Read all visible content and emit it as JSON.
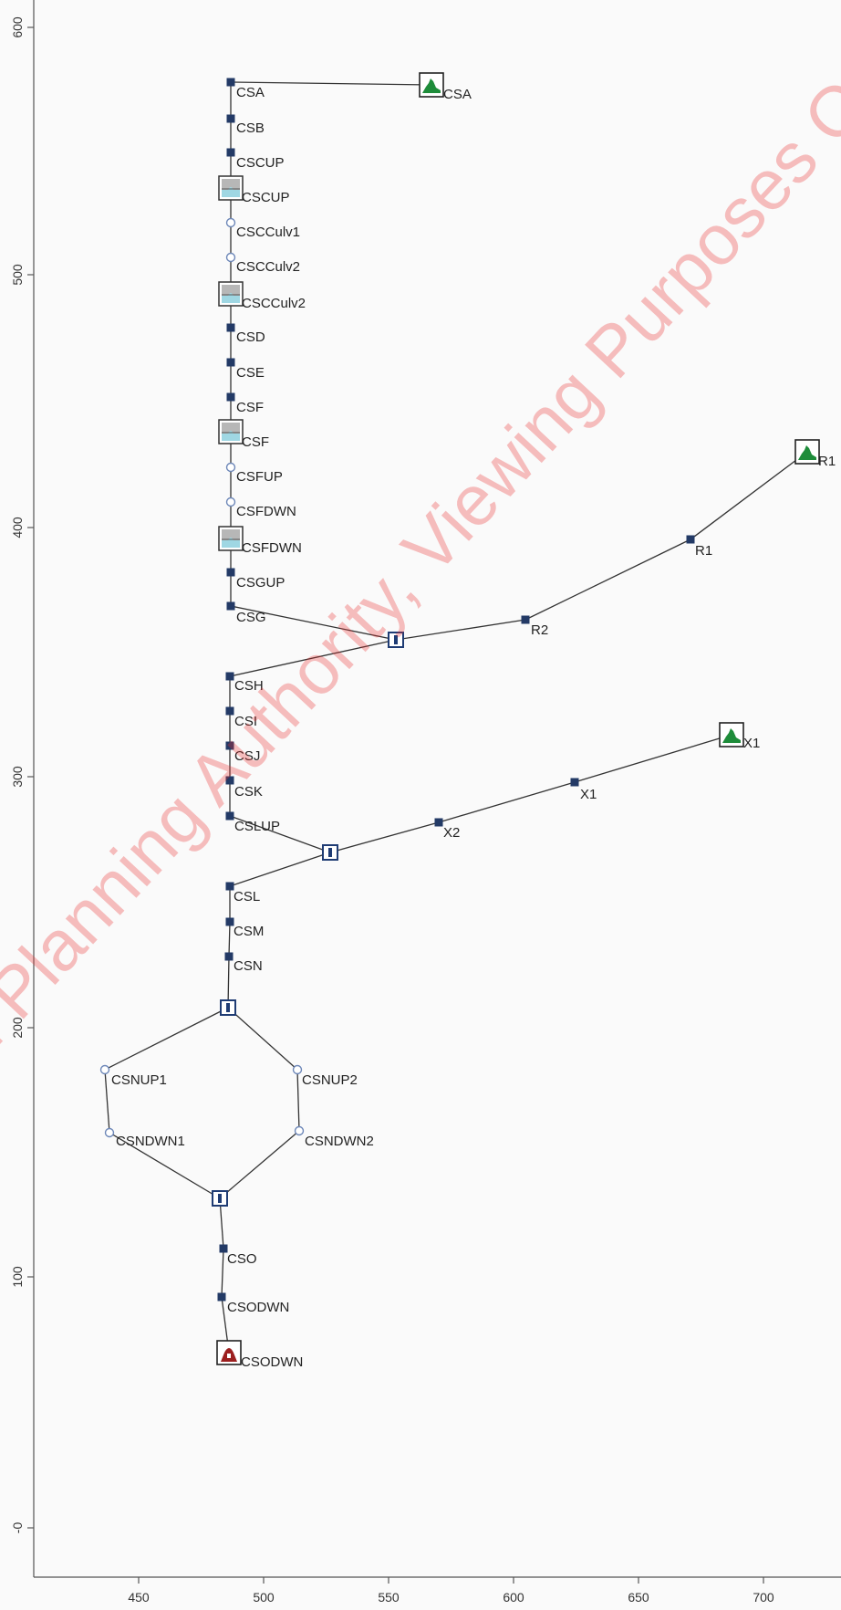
{
  "axes": {
    "x_ticks": [
      "450",
      "500",
      "550",
      "600",
      "650",
      "700"
    ],
    "y_ticks": [
      "600",
      "500",
      "400",
      "300",
      "200",
      "100",
      "-0"
    ]
  },
  "watermark": "il Planning Authority, Viewing Purposes O",
  "colors": {
    "square_node": "#233a66",
    "circle_node": "#6d87b8",
    "junction": "#1f3c74",
    "hydrograph": "#1e8c3a",
    "xs_fill": "#9fd7e3",
    "xs_grey": "#b7b7b7",
    "outflow": "#9c1f1f",
    "watermark": "#eb2d2d"
  },
  "nodes": [
    {
      "id": "csa_hydro",
      "label": "CSA",
      "type": "hydrograph"
    },
    {
      "id": "csa",
      "label": "CSA",
      "type": "square"
    },
    {
      "id": "csb",
      "label": "CSB",
      "type": "square"
    },
    {
      "id": "cscup",
      "label": "CSCUP",
      "type": "square"
    },
    {
      "id": "cscup_xs",
      "label": "CSCUP",
      "type": "xs"
    },
    {
      "id": "csculv1",
      "label": "CSCCulv1",
      "type": "circle"
    },
    {
      "id": "csculv2",
      "label": "CSCCulv2",
      "type": "circle"
    },
    {
      "id": "csculv2_xs",
      "label": "CSCCulv2",
      "type": "xs"
    },
    {
      "id": "csd",
      "label": "CSD",
      "type": "square"
    },
    {
      "id": "cse",
      "label": "CSE",
      "type": "square"
    },
    {
      "id": "csf",
      "label": "CSF",
      "type": "square"
    },
    {
      "id": "csf_xs",
      "label": "CSF",
      "type": "xs"
    },
    {
      "id": "csfup",
      "label": "CSFUP",
      "type": "circle"
    },
    {
      "id": "csfdwn",
      "label": "CSFDWN",
      "type": "circle"
    },
    {
      "id": "csfdwn_xs",
      "label": "CSFDWN",
      "type": "xs"
    },
    {
      "id": "csgup",
      "label": "CSGUP",
      "type": "square"
    },
    {
      "id": "csg",
      "label": "CSG",
      "type": "square"
    },
    {
      "id": "r1_hydro",
      "label": "R1",
      "type": "hydrograph"
    },
    {
      "id": "r1",
      "label": "R1",
      "type": "square"
    },
    {
      "id": "r2",
      "label": "R2",
      "type": "square"
    },
    {
      "id": "j1",
      "label": "",
      "type": "junction"
    },
    {
      "id": "csh",
      "label": "CSH",
      "type": "square"
    },
    {
      "id": "csi",
      "label": "CSI",
      "type": "square"
    },
    {
      "id": "csj",
      "label": "CSJ",
      "type": "square"
    },
    {
      "id": "csk",
      "label": "CSK",
      "type": "square"
    },
    {
      "id": "cslup",
      "label": "CSLUP",
      "type": "square"
    },
    {
      "id": "x1_hydro",
      "label": "X1",
      "type": "hydrograph"
    },
    {
      "id": "x1",
      "label": "X1",
      "type": "square"
    },
    {
      "id": "x2",
      "label": "X2",
      "type": "square"
    },
    {
      "id": "j2",
      "label": "",
      "type": "junction"
    },
    {
      "id": "csl",
      "label": "CSL",
      "type": "square"
    },
    {
      "id": "csm",
      "label": "CSM",
      "type": "square"
    },
    {
      "id": "csn",
      "label": "CSN",
      "type": "square"
    },
    {
      "id": "j3",
      "label": "",
      "type": "junction"
    },
    {
      "id": "csnup1",
      "label": "CSNUP1",
      "type": "circle"
    },
    {
      "id": "csndwn1",
      "label": "CSNDWN1",
      "type": "circle"
    },
    {
      "id": "csnup2",
      "label": "CSNUP2",
      "type": "circle"
    },
    {
      "id": "csndwn2",
      "label": "CSNDWN2",
      "type": "circle"
    },
    {
      "id": "j4",
      "label": "",
      "type": "junction"
    },
    {
      "id": "cso",
      "label": "CSO",
      "type": "square"
    },
    {
      "id": "csodwn",
      "label": "CSODWN",
      "type": "square"
    },
    {
      "id": "csodwn_out",
      "label": "CSODWN",
      "type": "outflow"
    }
  ],
  "edges": [
    [
      "csa",
      "csa_hydro"
    ],
    [
      "csa",
      "csb"
    ],
    [
      "csb",
      "cscup"
    ],
    [
      "cscup",
      "csculv1"
    ],
    [
      "csculv1",
      "csculv2"
    ],
    [
      "csculv2",
      "csd"
    ],
    [
      "csd",
      "cse"
    ],
    [
      "cse",
      "csf"
    ],
    [
      "csf",
      "csfup"
    ],
    [
      "csfup",
      "csfdwn"
    ],
    [
      "csfdwn",
      "csgup"
    ],
    [
      "csgup",
      "csg"
    ],
    [
      "csg",
      "j1"
    ],
    [
      "r1_hydro",
      "r1"
    ],
    [
      "r1",
      "r2"
    ],
    [
      "r2",
      "j1"
    ],
    [
      "j1",
      "csh"
    ],
    [
      "csh",
      "csi"
    ],
    [
      "csi",
      "csj"
    ],
    [
      "csj",
      "csk"
    ],
    [
      "csk",
      "cslup"
    ],
    [
      "cslup",
      "j2"
    ],
    [
      "x1_hydro",
      "x1"
    ],
    [
      "x1",
      "x2"
    ],
    [
      "x2",
      "j2"
    ],
    [
      "j2",
      "csl"
    ],
    [
      "csl",
      "csm"
    ],
    [
      "csm",
      "csn"
    ],
    [
      "csn",
      "j3"
    ],
    [
      "j3",
      "csnup1"
    ],
    [
      "csnup1",
      "csndwn1"
    ],
    [
      "csndwn1",
      "j4"
    ],
    [
      "j3",
      "csnup2"
    ],
    [
      "csnup2",
      "csndwn2"
    ],
    [
      "csndwn2",
      "j4"
    ],
    [
      "j4",
      "cso"
    ],
    [
      "cso",
      "csodwn"
    ],
    [
      "csodwn",
      "csodwn_out"
    ]
  ]
}
